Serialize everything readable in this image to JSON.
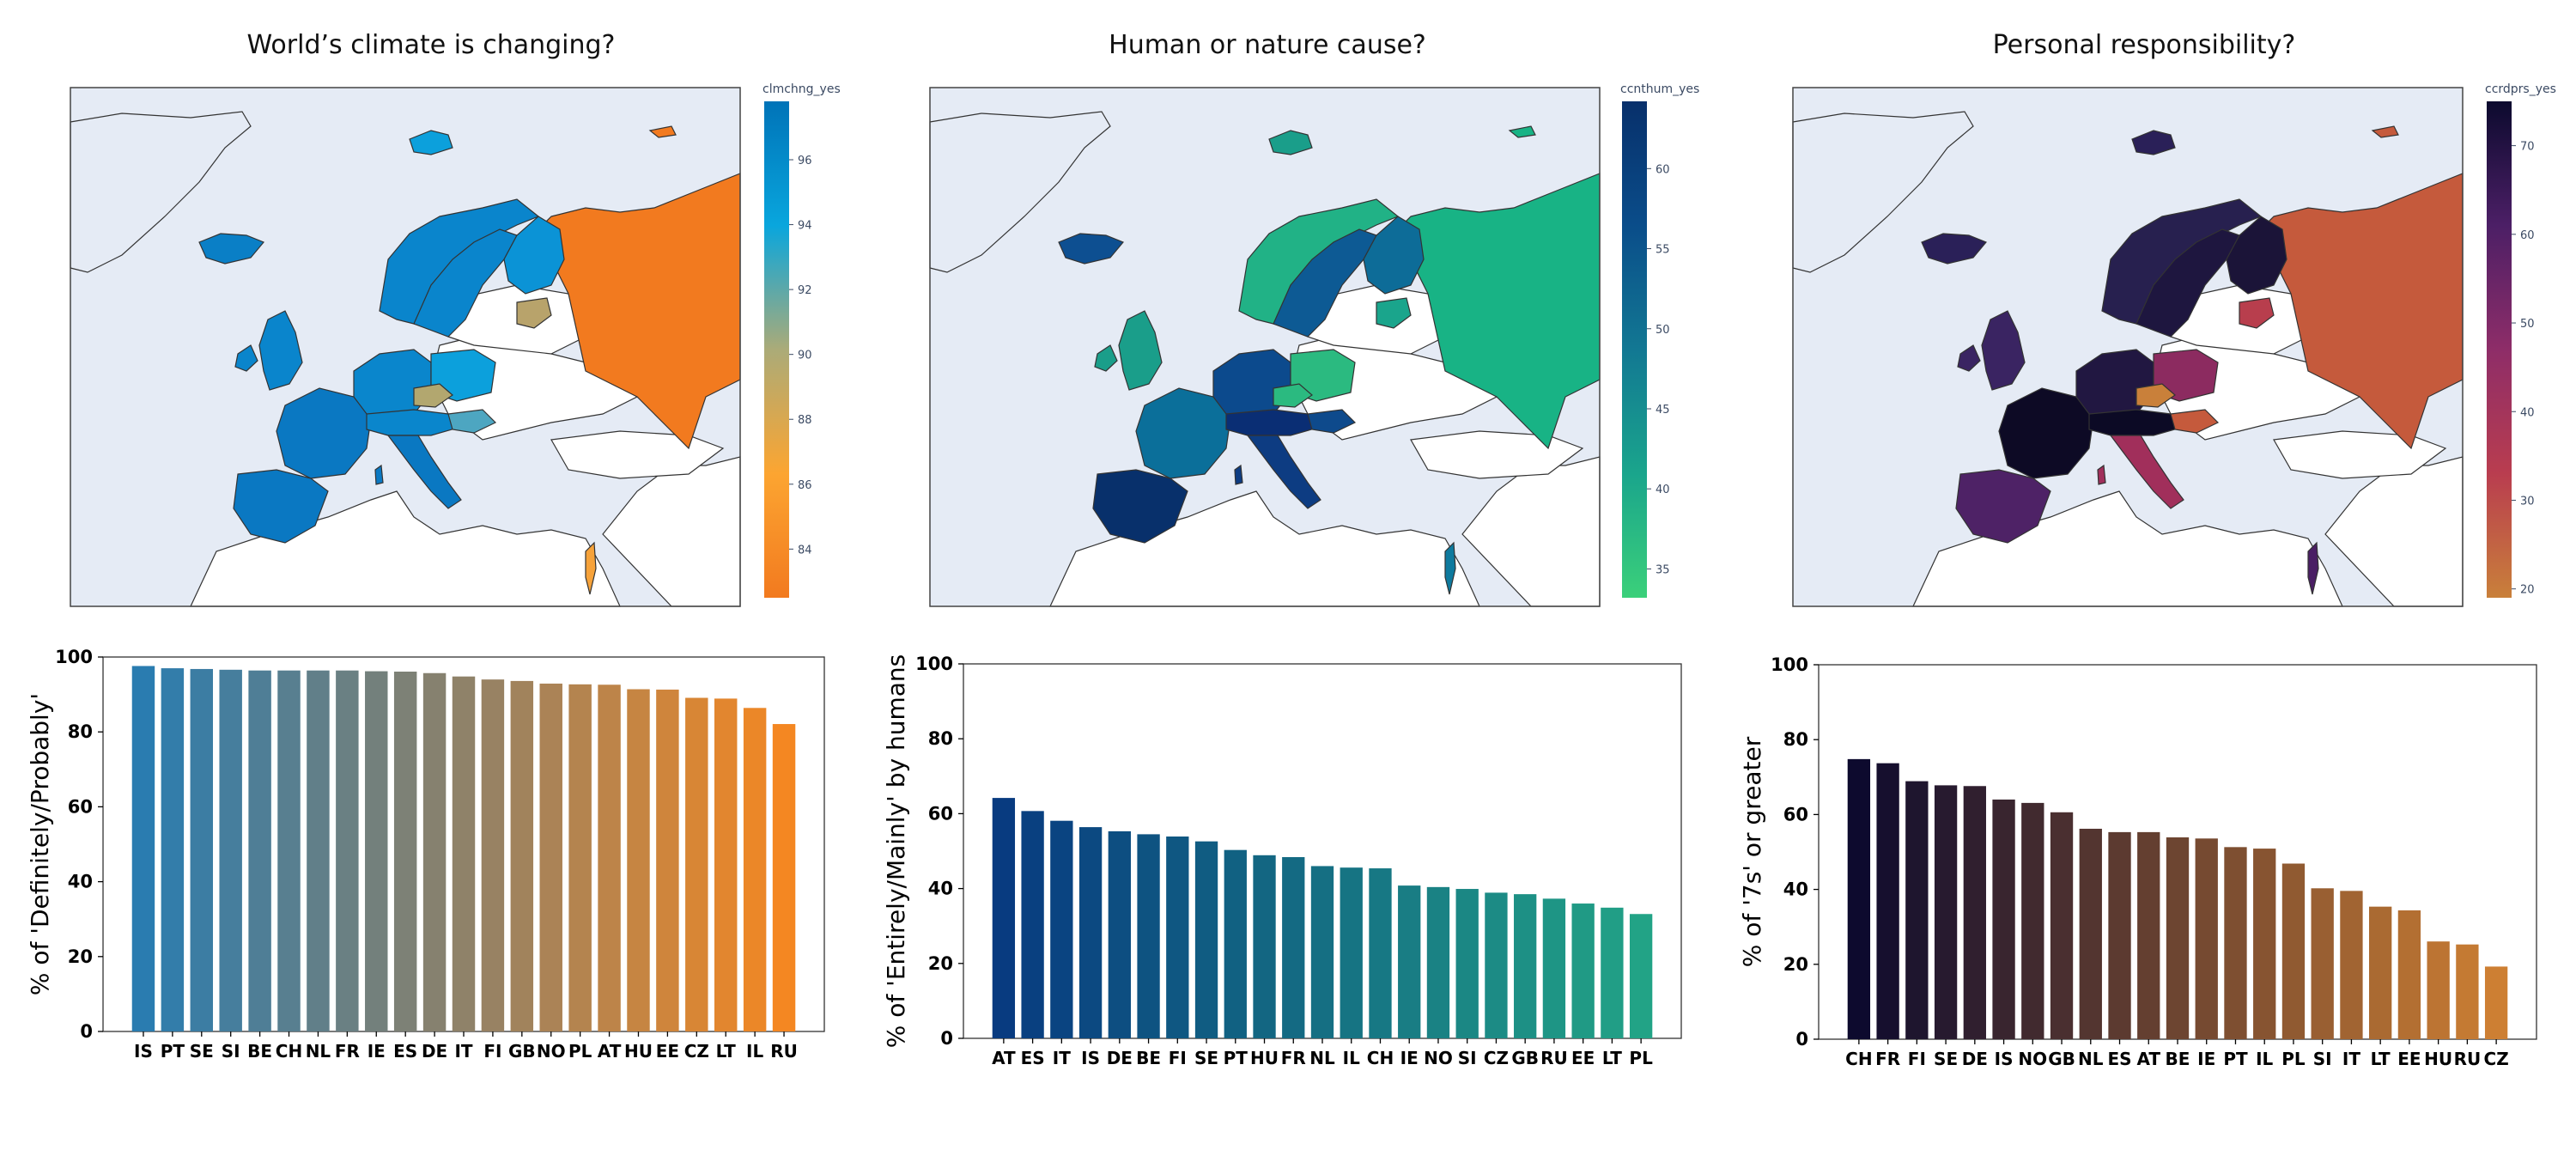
{
  "panels": [
    {
      "title": "World’s climate is changing?",
      "colorbar": {
        "label": "clmchng_yes",
        "ticks": [
          84,
          86,
          88,
          90,
          92,
          94,
          96
        ],
        "min": 82.5,
        "max": 97.8,
        "colors": [
          "#f27a1f",
          "#fca531",
          "#abab78",
          "#09a6dd",
          "#0073b8"
        ]
      },
      "map_colors": {
        "iceland": "#0a7fc6",
        "scandinavia": "#0a85cc",
        "finland": "#0b93d6",
        "uk": "#0a85cc",
        "west": "#0a78c2",
        "central": "#0a86cc",
        "czech": "#b2a76f",
        "poland": "#0ca0dc",
        "baltic": "#b8a36b",
        "hungary": "#4da6c1",
        "russia": "#f27a1f",
        "israel": "#f6a23a",
        "svalbard": "#0ca0dc",
        "novaya": "#f27a1f"
      },
      "chart_data": {
        "type": "bar",
        "categories": [
          "IS",
          "PT",
          "SE",
          "SI",
          "BE",
          "CH",
          "NL",
          "FR",
          "IE",
          "ES",
          "DE",
          "IT",
          "FI",
          "GB",
          "NO",
          "PL",
          "AT",
          "HU",
          "EE",
          "CZ",
          "LT",
          "IL",
          "RU"
        ],
        "values": [
          97.6,
          97.0,
          96.8,
          96.6,
          96.4,
          96.4,
          96.4,
          96.4,
          96.2,
          96.1,
          95.7,
          94.8,
          94.0,
          93.6,
          92.9,
          92.7,
          92.6,
          91.4,
          91.3,
          89.1,
          88.9,
          86.4,
          82.1
        ],
        "ylabel": "% of 'Definitely/Probably'",
        "ylim": [
          0,
          100
        ],
        "yticks": [
          0,
          20,
          40,
          60,
          80,
          100
        ]
      },
      "bar_color_start": "#2a7cb0",
      "bar_color_end": "#f48722"
    },
    {
      "title": "Human or nature cause?",
      "colorbar": {
        "label": "ccnthum_yes",
        "ticks": [
          35,
          40,
          45,
          50,
          55,
          60
        ],
        "min": 33.2,
        "max": 64.2,
        "colors": [
          "#3bd07a",
          "#1aa58c",
          "#127893",
          "#0a4d8a",
          "#08306b"
        ]
      },
      "map_colors": {
        "iceland": "#0d4f91",
        "scandinavia": "#0d5a94",
        "finland": "#0d6c98",
        "uk": "#1a9e8a",
        "west": "#0b6f9a",
        "central": "#0c4a8d",
        "czech": "#2bba80",
        "poland": "#2bba80",
        "baltic": "#1aa58c",
        "hungary": "#0e4a8c",
        "russia": "#18b385",
        "israel": "#0e7a9e",
        "svalbard": "#1a9e8a",
        "novaya": "#18b385",
        "iberia": "#08306b",
        "italy": "#0d3c82",
        "alpine": "#0a2e74",
        "norway": "#21b286"
      },
      "chart_data": {
        "type": "bar",
        "categories": [
          "AT",
          "ES",
          "IT",
          "IS",
          "DE",
          "BE",
          "FI",
          "SE",
          "PT",
          "HU",
          "FR",
          "NL",
          "IL",
          "CH",
          "IE",
          "NO",
          "SI",
          "CZ",
          "GB",
          "RU",
          "EE",
          "LT",
          "PL"
        ],
        "values": [
          64.2,
          60.7,
          58.1,
          56.4,
          55.3,
          54.5,
          53.9,
          52.6,
          50.3,
          48.9,
          48.4,
          46.0,
          45.6,
          45.4,
          40.8,
          40.4,
          39.9,
          38.9,
          38.5,
          37.3,
          36.0,
          34.9,
          33.2
        ],
        "ylabel": "% of 'Entirely/Mainly' by humans",
        "ylim": [
          0,
          100
        ],
        "yticks": [
          0,
          20,
          40,
          60,
          80,
          100
        ]
      },
      "bar_color_start": "#083b80",
      "bar_color_end": "#22a386"
    },
    {
      "title": "Personal responsibility?",
      "colorbar": {
        "label": "ccrdprs_yes",
        "ticks": [
          20,
          30,
          40,
          50,
          60,
          70
        ],
        "min": 19.0,
        "max": 75.0,
        "colors": [
          "#c9803a",
          "#b93d4f",
          "#8e2d68",
          "#4c1f66",
          "#0c0a2e"
        ]
      },
      "map_colors": {
        "iceland": "#2a2058",
        "scandinavia": "#1e163f",
        "finland": "#1b1438",
        "uk": "#3a2462",
        "west": "#0d0a25",
        "central": "#211741",
        "czech": "#c9803a",
        "poland": "#8c2b60",
        "baltic": "#b83e4d",
        "hungary": "#c55a3c",
        "russia": "#c55a3c",
        "israel": "#4a1e64",
        "svalbard": "#2a2058",
        "novaya": "#c55a3c",
        "iberia": "#4e2266",
        "italy": "#a12f5b",
        "alpine": "#0c0a25",
        "norway": "#27204f"
      },
      "chart_data": {
        "type": "bar",
        "categories": [
          "CH",
          "FR",
          "FI",
          "SE",
          "DE",
          "IS",
          "NO",
          "GB",
          "NL",
          "ES",
          "AT",
          "BE",
          "IE",
          "PT",
          "IL",
          "PL",
          "SI",
          "IT",
          "LT",
          "EE",
          "HU",
          "RU",
          "CZ"
        ],
        "values": [
          74.8,
          73.7,
          68.9,
          67.8,
          67.6,
          64.0,
          63.1,
          60.6,
          56.2,
          55.3,
          55.3,
          53.9,
          53.6,
          51.3,
          50.9,
          46.9,
          40.3,
          39.6,
          35.4,
          34.4,
          26.1,
          25.3,
          19.4
        ],
        "ylabel": "% of '7s' or greater",
        "ylim": [
          0,
          100
        ],
        "yticks": [
          0,
          20,
          40,
          60,
          80,
          100
        ]
      },
      "bar_color_start": "#0d0a2e",
      "bar_color_end": "#cd7f33"
    }
  ]
}
